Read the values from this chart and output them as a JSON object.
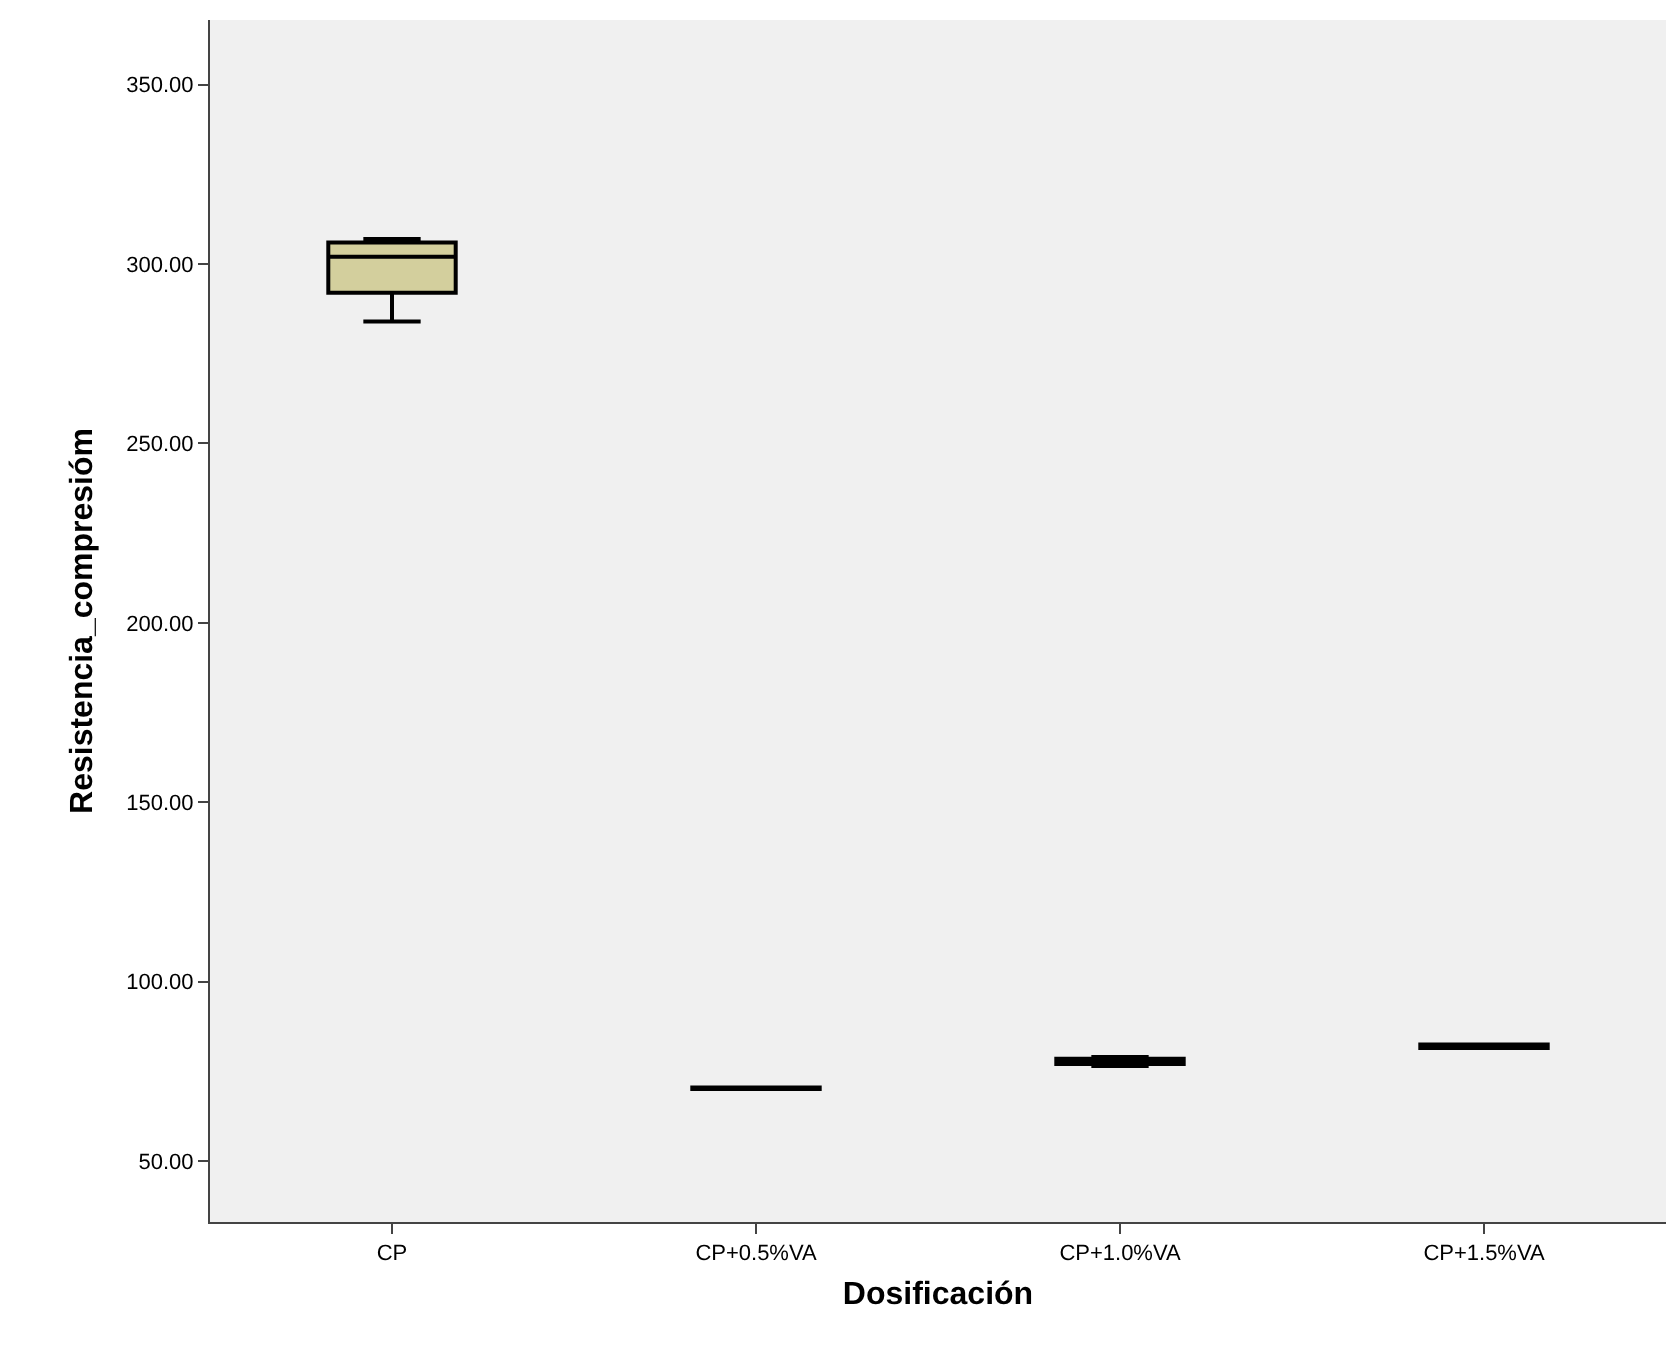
{
  "chart_data": {
    "type": "box",
    "xlabel": "Dosificación",
    "ylabel": "Resistencia_compresióm",
    "categories": [
      "CP",
      "CP+0.5%VA",
      "CP+1.0%VA",
      "CP+1.5%VA"
    ],
    "series": [
      {
        "color": "#d3cf9d",
        "boxes": [
          {
            "low": 284,
            "q1": 292,
            "median": 302,
            "q3": 306,
            "high": 307
          },
          {
            "low": 70.1,
            "q1": 70.1,
            "median": 70.3,
            "q3": 70.5,
            "high": 70.5
          },
          {
            "low": 76.5,
            "q1": 77,
            "median": 78,
            "q3": 78.5,
            "high": 79
          },
          {
            "low": 81.5,
            "q1": 81.5,
            "median": 82,
            "q3": 82.5,
            "high": 82.5
          }
        ]
      }
    ],
    "ylim": [
      33,
      368
    ],
    "yticks": [
      {
        "value": 50,
        "label": "50.00"
      },
      {
        "value": 100,
        "label": "100.00"
      },
      {
        "value": 150,
        "label": "150.00"
      },
      {
        "value": 200,
        "label": "200.00"
      },
      {
        "value": 250,
        "label": "250.00"
      },
      {
        "value": 300,
        "label": "300.00"
      },
      {
        "value": 350,
        "label": "350.00"
      }
    ],
    "grid": false
  }
}
